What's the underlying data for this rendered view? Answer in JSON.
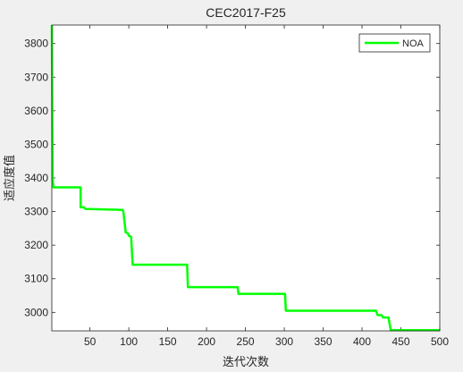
{
  "chart_data": {
    "type": "line",
    "title": "CEC2017-F25",
    "xlabel": "迭代次数",
    "ylabel": "适应度值",
    "xlim": [
      1,
      500
    ],
    "ylim": [
      2945,
      3855
    ],
    "xticks": [
      50,
      100,
      150,
      200,
      250,
      300,
      350,
      400,
      450,
      500
    ],
    "yticks": [
      3000,
      3100,
      3200,
      3300,
      3400,
      3500,
      3600,
      3700,
      3800
    ],
    "grid": false,
    "legend_position": "top-right",
    "series": [
      {
        "name": "NOA",
        "color": "#00ff00",
        "points": [
          [
            1,
            3855
          ],
          [
            2,
            3400
          ],
          [
            3,
            3372
          ],
          [
            38,
            3372
          ],
          [
            38,
            3313
          ],
          [
            42,
            3313
          ],
          [
            44,
            3308
          ],
          [
            92,
            3305
          ],
          [
            93,
            3300
          ],
          [
            96,
            3238
          ],
          [
            99,
            3235
          ],
          [
            100,
            3228
          ],
          [
            103,
            3225
          ],
          [
            105,
            3142
          ],
          [
            175,
            3142
          ],
          [
            176,
            3075
          ],
          [
            240,
            3075
          ],
          [
            241,
            3055
          ],
          [
            301,
            3055
          ],
          [
            302,
            3005
          ],
          [
            418,
            3005
          ],
          [
            420,
            2992
          ],
          [
            425,
            2992
          ],
          [
            427,
            2985
          ],
          [
            434,
            2985
          ],
          [
            437,
            2947
          ],
          [
            500,
            2947
          ]
        ]
      }
    ]
  }
}
